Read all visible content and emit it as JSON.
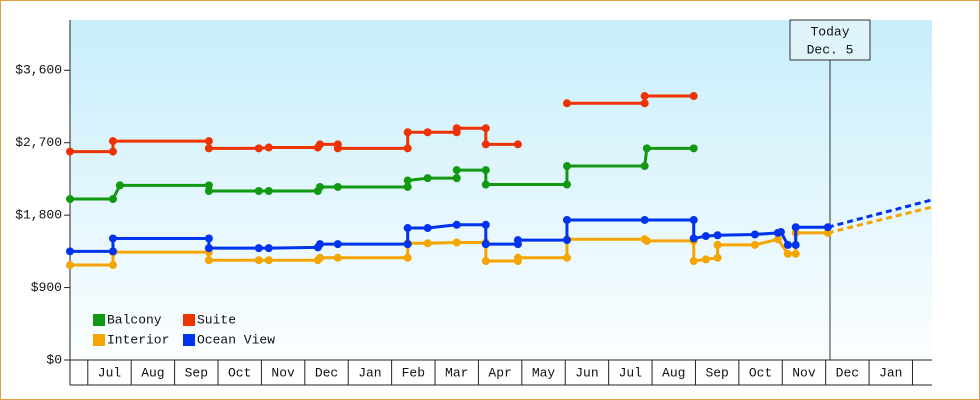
{
  "chart_data": {
    "type": "line",
    "xlim": [
      -0.41,
      19.45
    ],
    "xticks": [
      {
        "value": 0.5,
        "label": "Jul"
      },
      {
        "value": 1.5,
        "label": "Aug"
      },
      {
        "value": 2.5,
        "label": "Sep"
      },
      {
        "value": 3.5,
        "label": "Oct"
      },
      {
        "value": 4.5,
        "label": "Nov"
      },
      {
        "value": 5.5,
        "label": "Dec"
      },
      {
        "value": 6.5,
        "label": "Jan"
      },
      {
        "value": 7.5,
        "label": "Feb"
      },
      {
        "value": 8.5,
        "label": "Mar"
      },
      {
        "value": 9.5,
        "label": "Apr"
      },
      {
        "value": 10.5,
        "label": "May"
      },
      {
        "value": 11.5,
        "label": "Jun"
      },
      {
        "value": 12.5,
        "label": "Jul"
      },
      {
        "value": 13.5,
        "label": "Aug"
      },
      {
        "value": 14.5,
        "label": "Sep"
      },
      {
        "value": 15.5,
        "label": "Oct"
      },
      {
        "value": 16.5,
        "label": "Nov"
      },
      {
        "value": 17.5,
        "label": "Dec"
      },
      {
        "value": 18.5,
        "label": "Jan"
      }
    ],
    "ylim": [
      0,
      4200
    ],
    "yticks": [
      {
        "value": 0,
        "label": "$0"
      },
      {
        "value": 900,
        "label": "$900"
      },
      {
        "value": 1800,
        "label": "$1,800"
      },
      {
        "value": 2700,
        "label": "$2,700"
      },
      {
        "value": 3600,
        "label": "$3,600"
      }
    ],
    "legend": "lower left",
    "annotation": {
      "x": 17.1,
      "lines": [
        "Today",
        "Dec. 5"
      ]
    },
    "series": [
      {
        "name": "Balcony",
        "color": "#119911",
        "x": [
          -0.41,
          0.58,
          0.74,
          2.79,
          2.79,
          3.94,
          4.17,
          5.3,
          5.35,
          5.76,
          7.37,
          7.37,
          7.83,
          8.5,
          8.5,
          9.17,
          9.17,
          11.04,
          11.04,
          12.83,
          12.88,
          13.96
        ],
        "values": [
          2000,
          2000,
          2170,
          2170,
          2100,
          2100,
          2100,
          2100,
          2150,
          2150,
          2150,
          2230,
          2260,
          2260,
          2360,
          2360,
          2180,
          2180,
          2410,
          2410,
          2630,
          2630
        ]
      },
      {
        "name": "Suite",
        "color": "#ee3300",
        "x": [
          -0.41,
          0.58,
          0.58,
          2.79,
          2.79,
          3.94,
          4.17,
          5.3,
          5.35,
          5.76,
          5.76,
          7.37,
          7.37,
          7.83,
          8.5,
          8.5,
          9.17,
          9.17,
          9.91,
          10.5,
          11.04,
          12.83,
          12.83,
          13.96
        ],
        "values": [
          2590,
          2590,
          2720,
          2720,
          2630,
          2630,
          2640,
          2640,
          2680,
          2680,
          2630,
          2630,
          2830,
          2830,
          2830,
          2880,
          2880,
          2680,
          2680,
          null,
          3190,
          3190,
          3280,
          3280
        ]
      },
      {
        "name": "Interior",
        "color": "#f5a500",
        "x": [
          -0.41,
          0.58,
          0.58,
          2.79,
          2.79,
          3.94,
          4.17,
          5.3,
          5.35,
          5.76,
          7.37,
          7.37,
          7.83,
          8.5,
          9.17,
          9.17,
          9.91,
          9.91,
          11.04,
          11.04,
          12.83,
          12.88,
          13.96,
          13.96,
          14.24,
          14.51,
          14.51,
          15.37,
          15.9,
          16.13,
          16.31,
          16.31,
          17.05
        ],
        "values": [
          1180,
          1180,
          1340,
          1340,
          1240,
          1240,
          1240,
          1240,
          1270,
          1270,
          1270,
          1450,
          1450,
          1460,
          1460,
          1230,
          1230,
          1270,
          1270,
          1500,
          1500,
          1480,
          1480,
          1230,
          1250,
          1270,
          1430,
          1430,
          1500,
          1320,
          1320,
          1580,
          1580
        ],
        "forecast_x": [
          17.05,
          19.45
        ],
        "forecast_values": [
          1580,
          1900
        ]
      },
      {
        "name": "Ocean View",
        "color": "#0033ee",
        "x": [
          -0.41,
          0.58,
          0.58,
          2.79,
          2.79,
          3.94,
          4.17,
          5.3,
          5.35,
          5.76,
          7.37,
          7.37,
          7.83,
          8.5,
          9.17,
          9.17,
          9.91,
          9.91,
          11.04,
          11.04,
          12.83,
          13.96,
          13.96,
          14.24,
          14.51,
          15.37,
          15.9,
          15.97,
          16.13,
          16.31,
          16.31,
          17.05
        ],
        "values": [
          1350,
          1350,
          1510,
          1510,
          1390,
          1390,
          1390,
          1400,
          1440,
          1440,
          1440,
          1640,
          1640,
          1680,
          1680,
          1440,
          1440,
          1490,
          1490,
          1740,
          1740,
          1740,
          1510,
          1540,
          1550,
          1560,
          1580,
          1590,
          1430,
          1430,
          1650,
          1650
        ],
        "forecast_x": [
          17.05,
          19.45
        ],
        "forecast_values": [
          1650,
          1990
        ]
      }
    ]
  }
}
